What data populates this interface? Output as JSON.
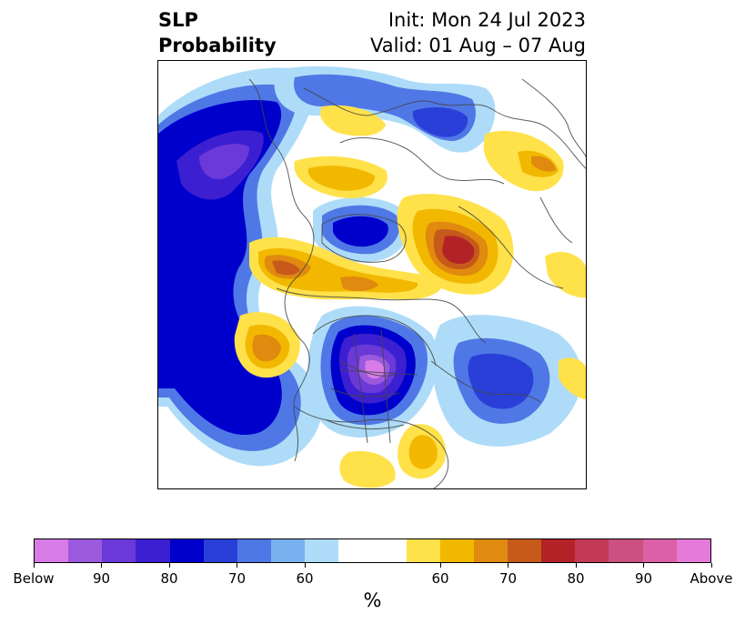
{
  "title": {
    "left_line1": "SLP",
    "left_line2": "Probability",
    "right_line1": "Init: Mon 24 Jul 2023",
    "right_line2": "Valid: 01 Aug – 07 Aug"
  },
  "colorbar": {
    "unit": "%",
    "segments": [
      "#d77ce6",
      "#9b59de",
      "#6a39d8",
      "#3c1fd0",
      "#0000cc",
      "#2a3fd8",
      "#4f78e6",
      "#78b0f0",
      "#aedcf8",
      "#ffffff",
      "#ffffff",
      "#ffe14a",
      "#f2b800",
      "#e08a10",
      "#c75a1a",
      "#b32226",
      "#c23a55",
      "#cc5080",
      "#dc60a8",
      "#e57ad8"
    ],
    "tick_labels": [
      "Below",
      "90",
      "80",
      "70",
      "60",
      "60",
      "70",
      "80",
      "90",
      "Above"
    ]
  },
  "map": {
    "projection": "north-polar-stereographic",
    "variable": "SLP probability",
    "features": [
      {
        "label": "above-normal-center",
        "color": "#b32226"
      },
      {
        "label": "below-normal-center",
        "color": "#9b59de"
      }
    ]
  }
}
